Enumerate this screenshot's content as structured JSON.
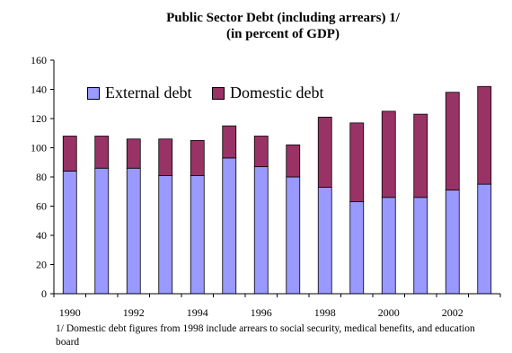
{
  "chart_data": {
    "type": "bar",
    "stacked": true,
    "title": "Public Sector Debt (including arrears) 1/",
    "subtitle": "(in percent of GDP)",
    "categories": [
      "1990",
      "1991",
      "1992",
      "1993",
      "1994",
      "1995",
      "1996",
      "1997",
      "1998",
      "1999",
      "2000",
      "2001",
      "2002",
      "2003"
    ],
    "x_tick_labels": [
      "1990",
      "",
      "1992",
      "",
      "1994",
      "",
      "1996",
      "",
      "1998",
      "",
      "2000",
      "",
      "2002",
      ""
    ],
    "y_ticks": [
      "0",
      "20",
      "40",
      "60",
      "80",
      "100",
      "120",
      "140",
      "160"
    ],
    "ylim": [
      0,
      160
    ],
    "series": [
      {
        "name": "External debt",
        "color": "#9999ff",
        "values": [
          84,
          86,
          86,
          81,
          81,
          93,
          87,
          80,
          73,
          63,
          66,
          66,
          71,
          75
        ]
      },
      {
        "name": "Domestic debt",
        "color": "#993366",
        "values": [
          24,
          22,
          20,
          25,
          24,
          22,
          21,
          22,
          48,
          54,
          59,
          57,
          67,
          67
        ]
      }
    ],
    "legend_position": "top-left",
    "footnote": "1/ Domestic debt figures from 1998 include arrears to social security, medical benefits, and education board"
  }
}
